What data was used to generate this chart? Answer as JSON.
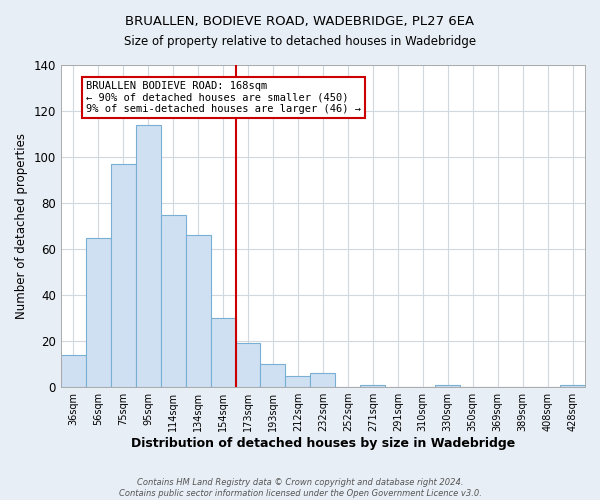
{
  "title": "BRUALLEN, BODIEVE ROAD, WADEBRIDGE, PL27 6EA",
  "subtitle": "Size of property relative to detached houses in Wadebridge",
  "xlabel": "Distribution of detached houses by size in Wadebridge",
  "ylabel": "Number of detached properties",
  "bar_labels": [
    "36sqm",
    "56sqm",
    "75sqm",
    "95sqm",
    "114sqm",
    "134sqm",
    "154sqm",
    "173sqm",
    "193sqm",
    "212sqm",
    "232sqm",
    "252sqm",
    "271sqm",
    "291sqm",
    "310sqm",
    "330sqm",
    "350sqm",
    "369sqm",
    "389sqm",
    "408sqm",
    "428sqm"
  ],
  "bar_heights": [
    14,
    65,
    97,
    114,
    75,
    66,
    30,
    19,
    10,
    5,
    6,
    0,
    1,
    0,
    0,
    1,
    0,
    0,
    0,
    0,
    1
  ],
  "bar_color": "#cfe0f3",
  "bar_edge_color": "#7aafd4",
  "vline_index": 7,
  "vline_color": "#cc0000",
  "annotation_title": "BRUALLEN BODIEVE ROAD: 168sqm",
  "annotation_line1": "← 90% of detached houses are smaller (450)",
  "annotation_line2": "9% of semi-detached houses are larger (46) →",
  "annotation_box_facecolor": "#ffffff",
  "annotation_box_edgecolor": "#cc0000",
  "ylim": [
    0,
    140
  ],
  "yticks": [
    0,
    20,
    40,
    60,
    80,
    100,
    120,
    140
  ],
  "footer1": "Contains HM Land Registry data © Crown copyright and database right 2024.",
  "footer2": "Contains public sector information licensed under the Open Government Licence v3.0.",
  "bg_color": "#e8eef5",
  "plot_bg_color": "#ffffff",
  "grid_color": "#d0d8e0"
}
